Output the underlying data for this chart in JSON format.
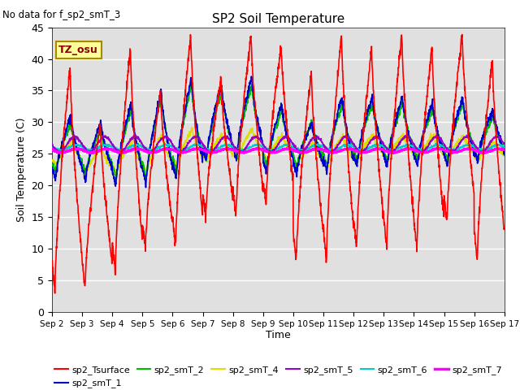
{
  "title": "SP2 Soil Temperature",
  "ylabel": "Soil Temperature (C)",
  "xlabel": "Time",
  "no_data_text": "No data for f_sp2_smT_3",
  "tz_label": "TZ_osu",
  "plot_bg_color": "#e0e0e0",
  "fig_bg_color": "#ffffff",
  "ylim": [
    0,
    45
  ],
  "yticks": [
    0,
    5,
    10,
    15,
    20,
    25,
    30,
    35,
    40,
    45
  ],
  "xlim": [
    0,
    15
  ],
  "xtick_labels": [
    "Sep 2",
    "Sep 3",
    "Sep 4",
    "Sep 5",
    "Sep 6",
    "Sep 7",
    "Sep 8",
    "Sep 9",
    "Sep 10",
    "Sep 11",
    "Sep 12",
    "Sep 13",
    "Sep 14",
    "Sep 15",
    "Sep 16",
    "Sep 17"
  ],
  "series_colors": {
    "sp2_Tsurface": "#ff0000",
    "sp2_smT_1": "#0000cc",
    "sp2_smT_2": "#00bb00",
    "sp2_smT_4": "#dddd00",
    "sp2_smT_5": "#9900cc",
    "sp2_smT_6": "#00cccc",
    "sp2_smT_7": "#ff00ff"
  },
  "legend_entries": [
    "sp2_Tsurface",
    "sp2_smT_1",
    "sp2_smT_2",
    "sp2_smT_4",
    "sp2_smT_5",
    "sp2_smT_6",
    "sp2_smT_7"
  ],
  "legend_colors": [
    "#ff0000",
    "#0000cc",
    "#00bb00",
    "#dddd00",
    "#9900cc",
    "#00cccc",
    "#ff00ff"
  ]
}
